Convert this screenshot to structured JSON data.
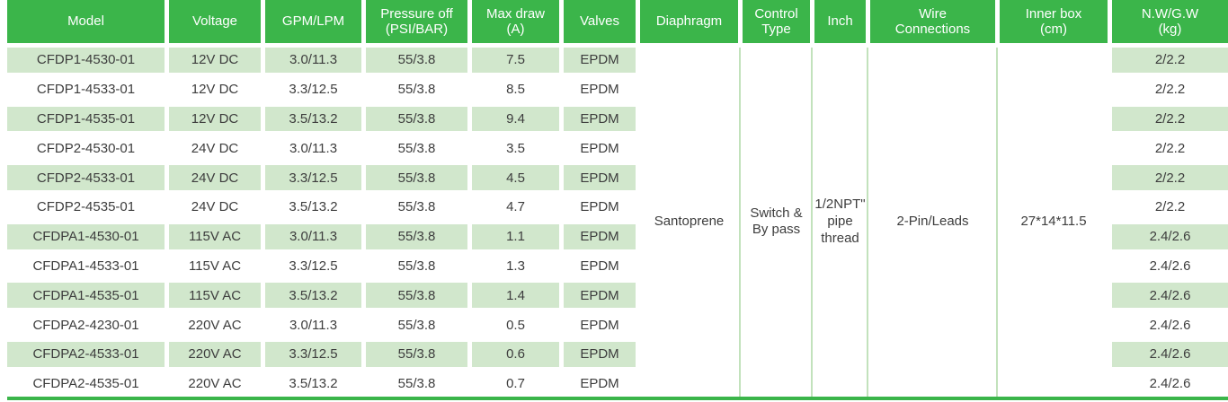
{
  "colors": {
    "header_green": "#3bb54a",
    "row_shade_green": "#d1e7cc",
    "separator_line_green": "#c2e2bc",
    "body_text": "#3d3d3d",
    "header_text": "#ffffff"
  },
  "table": {
    "columns": [
      {
        "key": "model",
        "label": "Model"
      },
      {
        "key": "voltage",
        "label": "Voltage"
      },
      {
        "key": "gpm_lpm",
        "label": "GPM/LPM"
      },
      {
        "key": "pressure_psi_bar",
        "label": "Pressure off\n(PSI/BAR)"
      },
      {
        "key": "max_draw_a",
        "label": "Max draw\n(A)"
      },
      {
        "key": "valves",
        "label": "Valves"
      },
      {
        "key": "diaphragm",
        "label": "Diaphragm"
      },
      {
        "key": "control_type",
        "label": "Control\nType"
      },
      {
        "key": "inch",
        "label": "Inch"
      },
      {
        "key": "wire_connections",
        "label": "Wire\nConnections"
      },
      {
        "key": "inner_box",
        "label": "Inner box\n(cm)"
      },
      {
        "key": "nw_gw",
        "label": "N.W/G.W\n(kg)"
      }
    ],
    "rows": [
      {
        "model": "CFDP1-4530-01",
        "voltage": "12V DC",
        "gpm_lpm": "3.0/11.3",
        "pressure_psi_bar": "55/3.8",
        "max_draw_a": "7.5",
        "valves": "EPDM",
        "nw_gw": "2/2.2"
      },
      {
        "model": "CFDP1-4533-01",
        "voltage": "12V DC",
        "gpm_lpm": "3.3/12.5",
        "pressure_psi_bar": "55/3.8",
        "max_draw_a": "8.5",
        "valves": "EPDM",
        "nw_gw": "2/2.2"
      },
      {
        "model": "CFDP1-4535-01",
        "voltage": "12V DC",
        "gpm_lpm": "3.5/13.2",
        "pressure_psi_bar": "55/3.8",
        "max_draw_a": "9.4",
        "valves": "EPDM",
        "nw_gw": "2/2.2"
      },
      {
        "model": "CFDP2-4530-01",
        "voltage": "24V DC",
        "gpm_lpm": "3.0/11.3",
        "pressure_psi_bar": "55/3.8",
        "max_draw_a": "3.5",
        "valves": "EPDM",
        "nw_gw": "2/2.2"
      },
      {
        "model": "CFDP2-4533-01",
        "voltage": "24V DC",
        "gpm_lpm": "3.3/12.5",
        "pressure_psi_bar": "55/3.8",
        "max_draw_a": "4.5",
        "valves": "EPDM",
        "nw_gw": "2/2.2"
      },
      {
        "model": "CFDP2-4535-01",
        "voltage": "24V DC",
        "gpm_lpm": "3.5/13.2",
        "pressure_psi_bar": "55/3.8",
        "max_draw_a": "4.7",
        "valves": "EPDM",
        "nw_gw": "2/2.2"
      },
      {
        "model": "CFDPA1-4530-01",
        "voltage": "115V AC",
        "gpm_lpm": "3.0/11.3",
        "pressure_psi_bar": "55/3.8",
        "max_draw_a": "1.1",
        "valves": "EPDM",
        "nw_gw": "2.4/2.6"
      },
      {
        "model": "CFDPA1-4533-01",
        "voltage": "115V AC",
        "gpm_lpm": "3.3/12.5",
        "pressure_psi_bar": "55/3.8",
        "max_draw_a": "1.3",
        "valves": "EPDM",
        "nw_gw": "2.4/2.6"
      },
      {
        "model": "CFDPA1-4535-01",
        "voltage": "115V AC",
        "gpm_lpm": "3.5/13.2",
        "pressure_psi_bar": "55/3.8",
        "max_draw_a": "1.4",
        "valves": "EPDM",
        "nw_gw": "2.4/2.6"
      },
      {
        "model": "CFDPA2-4230-01",
        "voltage": "220V AC",
        "gpm_lpm": "3.0/11.3",
        "pressure_psi_bar": "55/3.8",
        "max_draw_a": "0.5",
        "valves": "EPDM",
        "nw_gw": "2.4/2.6"
      },
      {
        "model": "CFDPA2-4533-01",
        "voltage": "220V AC",
        "gpm_lpm": "3.3/12.5",
        "pressure_psi_bar": "55/3.8",
        "max_draw_a": "0.6",
        "valves": "EPDM",
        "nw_gw": "2.4/2.6"
      },
      {
        "model": "CFDPA2-4535-01",
        "voltage": "220V AC",
        "gpm_lpm": "3.5/13.2",
        "pressure_psi_bar": "55/3.8",
        "max_draw_a": "0.7",
        "valves": "EPDM",
        "nw_gw": "2.4/2.6"
      }
    ],
    "merged_cells": [
      {
        "key": "diaphragm",
        "value": "Santoprene"
      },
      {
        "key": "control_type",
        "value": "Switch & By pass"
      },
      {
        "key": "inch",
        "value": "1/2NPT\" pipe thread"
      },
      {
        "key": "wire_connections",
        "value": "2-Pin/Leads"
      },
      {
        "key": "inner_box",
        "value": "27*14*11.5"
      }
    ]
  }
}
